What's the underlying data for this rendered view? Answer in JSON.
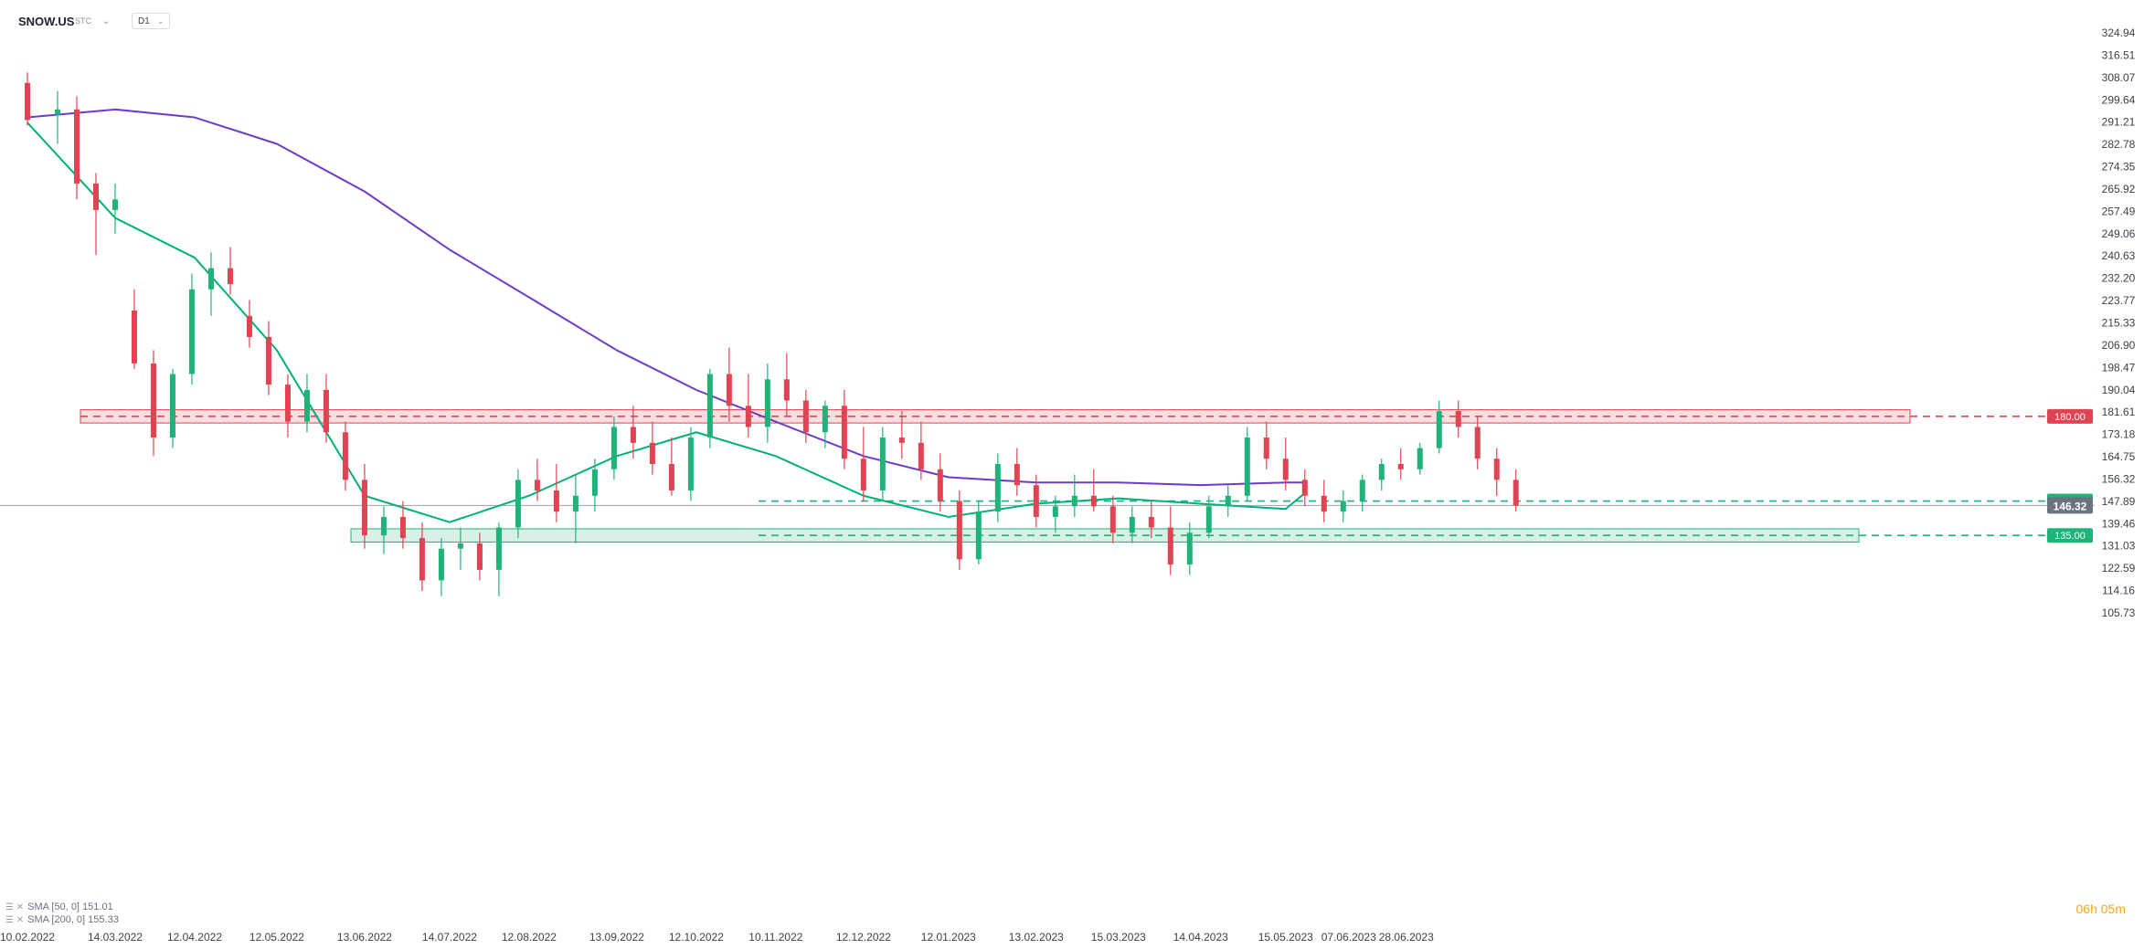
{
  "header": {
    "symbol": "SNOW.US",
    "source": "STC",
    "timeframe": "D1"
  },
  "legend": [
    {
      "label": "SMA [50, 0] 151.01",
      "color": "#00b07a"
    },
    {
      "label": "SMA [200, 0] 155.33",
      "color": "#6f3cc8"
    }
  ],
  "countdown": "06h 05m",
  "colors": {
    "bull": "#1fb37a",
    "bear": "#e04351",
    "sma50": "#00b07a",
    "sma200": "#6f3cc8",
    "resistance": "#e04351",
    "support": "#1fb37a"
  },
  "chart_data": {
    "type": "candlestick",
    "title": "",
    "ylim": [
      105.73,
      324.94
    ],
    "y_ticks": [
      324.94,
      316.51,
      308.07,
      299.64,
      291.21,
      282.78,
      274.35,
      265.92,
      257.49,
      249.06,
      240.63,
      232.2,
      223.77,
      215.33,
      206.9,
      198.47,
      190.04,
      181.61,
      173.18,
      164.75,
      156.32,
      147.89,
      139.46,
      131.03,
      122.59,
      114.16,
      105.73
    ],
    "x_ticks": [
      "10.02.2022",
      "14.03.2022",
      "12.04.2022",
      "12.05.2022",
      "13.06.2022",
      "14.07.2022",
      "12.08.2022",
      "13.09.2022",
      "12.10.2022",
      "10.11.2022",
      "12.12.2022",
      "12.01.2023",
      "13.02.2023",
      "15.03.2023",
      "14.04.2023",
      "15.05.2023",
      "07.06.2023",
      "28.06.2023"
    ],
    "current_price": 146.32,
    "levels": [
      {
        "value": 180.0,
        "label": "180.00",
        "kind": "resistance",
        "zone": [
          177.5,
          182.5
        ]
      },
      {
        "value": 148.0,
        "label": "148.00",
        "kind": "support",
        "zone": null
      },
      {
        "value": 135.0,
        "label": "135.00",
        "kind": "support",
        "zone": [
          132.5,
          137.5
        ]
      }
    ],
    "series": [
      {
        "name": "SMA [50, 0]",
        "color": "#00b07a",
        "points": [
          [
            "10.02.2022",
            291
          ],
          [
            "14.03.2022",
            255
          ],
          [
            "12.04.2022",
            240
          ],
          [
            "12.05.2022",
            205
          ],
          [
            "13.06.2022",
            150
          ],
          [
            "14.07.2022",
            140
          ],
          [
            "12.08.2022",
            150
          ],
          [
            "13.09.2022",
            165
          ],
          [
            "12.10.2022",
            174
          ],
          [
            "10.11.2022",
            165
          ],
          [
            "12.12.2022",
            150
          ],
          [
            "12.01.2023",
            142
          ],
          [
            "13.02.2023",
            147
          ],
          [
            "15.03.2023",
            149
          ],
          [
            "14.04.2023",
            147
          ],
          [
            "15.05.2023",
            145
          ],
          [
            "22.05.2023",
            151
          ]
        ]
      },
      {
        "name": "SMA [200, 0]",
        "color": "#6f3cc8",
        "points": [
          [
            "10.02.2022",
            293
          ],
          [
            "14.03.2022",
            296
          ],
          [
            "12.04.2022",
            293
          ],
          [
            "12.05.2022",
            283
          ],
          [
            "13.06.2022",
            265
          ],
          [
            "14.07.2022",
            243
          ],
          [
            "12.08.2022",
            225
          ],
          [
            "13.09.2022",
            205
          ],
          [
            "12.10.2022",
            190
          ],
          [
            "10.11.2022",
            178
          ],
          [
            "12.12.2022",
            165
          ],
          [
            "12.01.2023",
            157
          ],
          [
            "13.02.2023",
            155
          ],
          [
            "15.03.2023",
            155
          ],
          [
            "14.04.2023",
            154
          ],
          [
            "15.05.2023",
            155
          ],
          [
            "22.05.2023",
            155
          ]
        ]
      }
    ],
    "candles": [
      [
        "10.02.2022",
        306,
        310,
        290,
        292
      ],
      [
        "21.02.2022",
        294,
        303,
        283,
        296
      ],
      [
        "28.02.2022",
        296,
        301,
        262,
        268
      ],
      [
        "07.03.2022",
        268,
        272,
        241,
        258
      ],
      [
        "14.03.2022",
        258,
        268,
        249,
        262
      ],
      [
        "21.03.2022",
        220,
        228,
        198,
        200
      ],
      [
        "28.03.2022",
        200,
        205,
        165,
        172
      ],
      [
        "04.04.2022",
        172,
        198,
        168,
        196
      ],
      [
        "11.04.2022",
        196,
        234,
        192,
        228
      ],
      [
        "18.04.2022",
        228,
        242,
        218,
        236
      ],
      [
        "25.04.2022",
        236,
        244,
        226,
        230
      ],
      [
        "02.05.2022",
        218,
        224,
        206,
        210
      ],
      [
        "09.05.2022",
        210,
        216,
        188,
        192
      ],
      [
        "16.05.2022",
        192,
        196,
        172,
        178
      ],
      [
        "23.05.2022",
        178,
        196,
        174,
        190
      ],
      [
        "30.05.2022",
        190,
        196,
        170,
        174
      ],
      [
        "06.06.2022",
        174,
        178,
        152,
        156
      ],
      [
        "13.06.2022",
        156,
        162,
        130,
        135
      ],
      [
        "20.06.2022",
        135,
        146,
        128,
        142
      ],
      [
        "27.06.2022",
        142,
        148,
        130,
        134
      ],
      [
        "04.07.2022",
        134,
        140,
        114,
        118
      ],
      [
        "11.07.2022",
        118,
        134,
        112,
        130
      ],
      [
        "18.07.2022",
        130,
        138,
        122,
        132
      ],
      [
        "25.07.2022",
        132,
        136,
        118,
        122
      ],
      [
        "01.08.2022",
        122,
        140,
        112,
        138
      ],
      [
        "08.08.2022",
        138,
        160,
        134,
        156
      ],
      [
        "15.08.2022",
        156,
        164,
        148,
        152
      ],
      [
        "22.08.2022",
        152,
        162,
        140,
        144
      ],
      [
        "29.08.2022",
        144,
        158,
        132,
        150
      ],
      [
        "05.09.2022",
        150,
        164,
        144,
        160
      ],
      [
        "12.09.2022",
        160,
        180,
        156,
        176
      ],
      [
        "19.09.2022",
        176,
        184,
        164,
        170
      ],
      [
        "26.09.2022",
        170,
        178,
        158,
        162
      ],
      [
        "03.10.2022",
        162,
        172,
        150,
        152
      ],
      [
        "10.10.2022",
        152,
        176,
        148,
        172
      ],
      [
        "17.10.2022",
        172,
        198,
        168,
        196
      ],
      [
        "24.10.2022",
        196,
        206,
        178,
        184
      ],
      [
        "31.10.2022",
        184,
        196,
        172,
        176
      ],
      [
        "07.11.2022",
        176,
        200,
        170,
        194
      ],
      [
        "14.11.2022",
        194,
        204,
        180,
        186
      ],
      [
        "21.11.2022",
        186,
        190,
        170,
        174
      ],
      [
        "28.11.2022",
        174,
        186,
        168,
        184
      ],
      [
        "05.12.2022",
        184,
        190,
        160,
        164
      ],
      [
        "12.12.2022",
        164,
        176,
        148,
        152
      ],
      [
        "19.12.2022",
        152,
        176,
        148,
        172
      ],
      [
        "26.12.2022",
        172,
        182,
        164,
        170
      ],
      [
        "02.01.2023",
        170,
        178,
        156,
        160
      ],
      [
        "09.01.2023",
        160,
        166,
        144,
        148
      ],
      [
        "16.01.2023",
        148,
        152,
        122,
        126
      ],
      [
        "23.01.2023",
        126,
        148,
        124,
        144
      ],
      [
        "30.01.2023",
        144,
        166,
        140,
        162
      ],
      [
        "06.02.2023",
        162,
        168,
        150,
        154
      ],
      [
        "13.02.2023",
        154,
        158,
        138,
        142
      ],
      [
        "20.02.2023",
        142,
        150,
        136,
        146
      ],
      [
        "27.02.2023",
        146,
        158,
        142,
        150
      ],
      [
        "06.03.2023",
        150,
        160,
        144,
        146
      ],
      [
        "13.03.2023",
        146,
        150,
        132,
        136
      ],
      [
        "20.03.2023",
        136,
        146,
        132,
        142
      ],
      [
        "27.03.2023",
        142,
        148,
        134,
        138
      ],
      [
        "03.04.2023",
        138,
        146,
        120,
        124
      ],
      [
        "10.04.2023",
        124,
        140,
        120,
        136
      ],
      [
        "17.04.2023",
        136,
        150,
        134,
        146
      ],
      [
        "24.04.2023",
        146,
        154,
        142,
        150
      ],
      [
        "01.05.2023",
        150,
        176,
        148,
        172
      ],
      [
        "08.05.2023",
        172,
        178,
        160,
        164
      ],
      [
        "15.05.2023",
        164,
        172,
        152,
        156
      ],
      [
        "22.05.2023",
        156,
        160,
        146,
        150
      ],
      [
        "29.05.2023",
        150,
        156,
        140,
        144
      ],
      [
        "05.06.2023",
        144,
        152,
        140,
        148
      ],
      [
        "12.06.2023",
        148,
        158,
        144,
        156
      ],
      [
        "19.06.2023",
        156,
        164,
        152,
        162
      ],
      [
        "26.06.2023",
        162,
        168,
        156,
        160
      ],
      [
        "03.07.2023",
        160,
        170,
        158,
        168
      ],
      [
        "10.07.2023",
        168,
        186,
        166,
        182
      ],
      [
        "17.07.2023",
        182,
        186,
        172,
        176
      ],
      [
        "24.07.2023",
        176,
        180,
        160,
        164
      ],
      [
        "31.07.2023",
        164,
        168,
        150,
        156
      ],
      [
        "07.08.2023",
        156,
        160,
        144,
        146.32
      ]
    ]
  }
}
